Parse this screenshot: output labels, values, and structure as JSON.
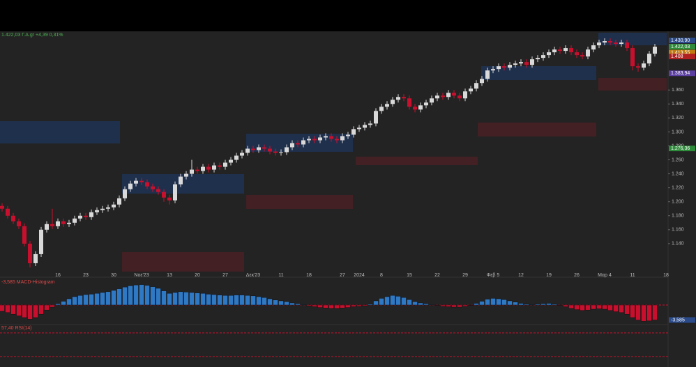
{
  "chart_data": [
    {
      "type": "candlestick",
      "title": "1.422,03 Γ.Δ.gr +4,39 0,31%",
      "categories": [
        null,
        null,
        null,
        null,
        null,
        null,
        null,
        null,
        null,
        null,
        "16",
        null,
        null,
        null,
        null,
        "23",
        null,
        null,
        null,
        null,
        "30",
        null,
        null,
        null,
        null,
        "Νοε'23",
        null,
        null,
        null,
        null,
        "13",
        null,
        null,
        null,
        null,
        "20",
        null,
        null,
        null,
        null,
        "27",
        null,
        null,
        null,
        null,
        "Δεκ'23",
        null,
        null,
        null,
        null,
        "11",
        null,
        null,
        null,
        null,
        "18",
        null,
        null,
        null,
        null,
        null,
        "27",
        null,
        null,
        "2024",
        null,
        null,
        null,
        "8",
        null,
        null,
        null,
        null,
        "15",
        null,
        null,
        null,
        null,
        "22",
        null,
        null,
        null,
        null,
        "29",
        null,
        null,
        null,
        null,
        "Φεβ 5",
        null,
        null,
        null,
        null,
        "12",
        null,
        null,
        null,
        null,
        "19",
        null,
        null,
        null,
        null,
        "26",
        null,
        null,
        null,
        null,
        "Μαρ 4",
        null,
        null,
        null,
        null,
        "11",
        null,
        null,
        null,
        null,
        null,
        "18"
      ],
      "opens": [
        1194,
        1190,
        1180,
        1172,
        1165,
        1140,
        1112,
        1125,
        1160,
        1168,
        1165,
        1172,
        1168,
        1170,
        1176,
        1180,
        1178,
        1185,
        1188,
        1190,
        1192,
        1196,
        1205,
        1218,
        1226,
        1230,
        1228,
        1222,
        1218,
        1214,
        1206,
        1202,
        1225,
        1236,
        1240,
        1246,
        1244,
        1250,
        1246,
        1252,
        1250,
        1256,
        1260,
        1266,
        1270,
        1276,
        1274,
        1278,
        1276,
        1272,
        1270,
        1271,
        1278,
        1284,
        1282,
        1288,
        1290,
        1288,
        1292,
        1294,
        1290,
        1288,
        1294,
        1296,
        1304,
        1306,
        1310,
        1312,
        1330,
        1336,
        1340,
        1346,
        1350,
        1348,
        1336,
        1332,
        1338,
        1342,
        1348,
        1352,
        1350,
        1356,
        1352,
        1348,
        1358,
        1362,
        1370,
        1376,
        1388,
        1390,
        1394,
        1392,
        1396,
        1398,
        1400,
        1396,
        1404,
        1406,
        1410,
        1414,
        1418,
        1416,
        1420,
        1414,
        1410,
        1408,
        1418,
        1424,
        1428,
        1430,
        1428,
        1426,
        1428,
        1420,
        1394,
        1392,
        1398,
        1412,
        null,
        null
      ],
      "highs": [
        1198,
        1194,
        1184,
        1176,
        1169,
        1144,
        1129,
        1164,
        1172,
        1190,
        1176,
        1176,
        1174,
        1180,
        1184,
        1184,
        1189,
        1192,
        1194,
        1196,
        1200,
        1209,
        1222,
        1230,
        1234,
        1234,
        1232,
        1226,
        1222,
        1218,
        1210,
        1229,
        1240,
        1244,
        1260,
        1250,
        1254,
        1254,
        1256,
        1256,
        1260,
        1264,
        1270,
        1274,
        1280,
        1280,
        1282,
        1282,
        1280,
        1276,
        1275,
        1282,
        1288,
        1288,
        1292,
        1294,
        1294,
        1296,
        1298,
        1298,
        1294,
        1298,
        1300,
        1308,
        1310,
        1314,
        1316,
        1334,
        1340,
        1344,
        1350,
        1354,
        1354,
        1352,
        1340,
        1342,
        1346,
        1352,
        1356,
        1356,
        1360,
        1360,
        1356,
        1362,
        1366,
        1374,
        1380,
        1392,
        1394,
        1398,
        1398,
        1400,
        1402,
        1404,
        1404,
        1408,
        1410,
        1414,
        1418,
        1422,
        1422,
        1424,
        1424,
        1418,
        1414,
        1422,
        1428,
        1432,
        1434,
        1434,
        1432,
        1432,
        1432,
        1424,
        1398,
        1402,
        1416,
        1426,
        null,
        null
      ],
      "lows": [
        1186,
        1176,
        1168,
        1161,
        1136,
        1106,
        1108,
        1121,
        1156,
        1161,
        1161,
        1164,
        1164,
        1166,
        1172,
        1174,
        1174,
        1181,
        1184,
        1186,
        1188,
        1192,
        1201,
        1214,
        1222,
        1224,
        1218,
        1214,
        1210,
        1200,
        1196,
        1198,
        1221,
        1232,
        1236,
        1240,
        1240,
        1242,
        1242,
        1246,
        1246,
        1252,
        1256,
        1262,
        1266,
        1270,
        1270,
        1272,
        1268,
        1266,
        1266,
        1267,
        1274,
        1278,
        1278,
        1284,
        1284,
        1284,
        1288,
        1286,
        1284,
        1284,
        1290,
        1292,
        1300,
        1302,
        1306,
        1308,
        1326,
        1332,
        1336,
        1342,
        1344,
        1332,
        1328,
        1328,
        1334,
        1338,
        1344,
        1346,
        1346,
        1348,
        1344,
        1344,
        1354,
        1358,
        1366,
        1372,
        1384,
        1386,
        1388,
        1388,
        1392,
        1394,
        1392,
        1392,
        1400,
        1402,
        1406,
        1410,
        1412,
        1412,
        1410,
        1406,
        1404,
        1404,
        1414,
        1420,
        1424,
        1424,
        1422,
        1422,
        1416,
        1388,
        1386,
        1388,
        1394,
        1408,
        null,
        null
      ],
      "closes": [
        1190,
        1180,
        1172,
        1165,
        1140,
        1112,
        1125,
        1160,
        1168,
        1165,
        1172,
        1168,
        1170,
        1176,
        1180,
        1178,
        1185,
        1188,
        1190,
        1192,
        1196,
        1205,
        1218,
        1226,
        1230,
        1228,
        1222,
        1218,
        1214,
        1206,
        1202,
        1225,
        1236,
        1240,
        1246,
        1244,
        1250,
        1246,
        1252,
        1250,
        1256,
        1260,
        1266,
        1270,
        1276,
        1274,
        1278,
        1276,
        1272,
        1270,
        1271,
        1278,
        1284,
        1282,
        1288,
        1290,
        1288,
        1292,
        1294,
        1290,
        1288,
        1294,
        1296,
        1304,
        1306,
        1310,
        1312,
        1330,
        1336,
        1340,
        1346,
        1350,
        1348,
        1336,
        1332,
        1338,
        1342,
        1348,
        1352,
        1350,
        1356,
        1352,
        1348,
        1358,
        1362,
        1370,
        1376,
        1388,
        1390,
        1394,
        1392,
        1396,
        1398,
        1400,
        1396,
        1404,
        1406,
        1410,
        1414,
        1418,
        1416,
        1420,
        1414,
        1410,
        1408,
        1418,
        1424,
        1428,
        1430,
        1428,
        1426,
        1428,
        1420,
        1394,
        1392,
        1398,
        1412,
        1422,
        null,
        null
      ],
      "up_color": "#d9d9d9",
      "down_color": "#c8102e",
      "ylim": [
        1100,
        1442
      ],
      "yticks": [
        {
          "value": 1140,
          "label": "1.140"
        },
        {
          "value": 1160,
          "label": "1.160"
        },
        {
          "value": 1180,
          "label": "1.180"
        },
        {
          "value": 1200,
          "label": "1.200"
        },
        {
          "value": 1220,
          "label": "1.220"
        },
        {
          "value": 1240,
          "label": "1.240"
        },
        {
          "value": 1260,
          "label": "1.260"
        },
        {
          "value": 1280,
          "label": "1.280"
        },
        {
          "value": 1300,
          "label": "1.300"
        },
        {
          "value": 1320,
          "label": "1.320"
        },
        {
          "value": 1340,
          "label": "1.340"
        },
        {
          "value": 1360,
          "label": "1.360"
        }
      ],
      "price_markers": [
        {
          "value": 1430.9,
          "label": "1.430,90",
          "color": "#2a4a8a"
        },
        {
          "value": 1422.03,
          "label": "1.422,03",
          "color": "#2e8b3a"
        },
        {
          "value": 1413.55,
          "label": "1.413,55",
          "color": "#c07a10"
        },
        {
          "value": 1408,
          "label": "1.408",
          "color": "#b02020"
        },
        {
          "value": 1383.94,
          "label": "1.383,94",
          "color": "#5a3fa0"
        },
        {
          "value": 1276.36,
          "label": "1.276,36",
          "color": "#2e8b3a"
        }
      ]
    },
    {
      "type": "histogram",
      "title": "-3,585 MACD-Histogram",
      "values": [
        -1.5,
        -1.8,
        -2.2,
        -2.6,
        -3.0,
        -3.4,
        -3.0,
        -2.2,
        -1.2,
        -0.5,
        0.3,
        0.9,
        1.5,
        2.0,
        2.3,
        2.5,
        2.6,
        2.8,
        3.0,
        3.2,
        3.5,
        3.9,
        4.3,
        4.6,
        4.8,
        4.9,
        4.7,
        4.4,
        4.0,
        3.4,
        2.8,
        3.0,
        3.2,
        3.1,
        3.0,
        2.9,
        2.8,
        2.6,
        2.5,
        2.4,
        2.3,
        2.3,
        2.4,
        2.4,
        2.3,
        2.2,
        2.0,
        1.8,
        1.5,
        1.2,
        1.0,
        0.8,
        0.5,
        0.3,
        0.1,
        -0.2,
        -0.4,
        -0.6,
        -0.7,
        -0.8,
        -0.8,
        -0.7,
        -0.6,
        -0.4,
        -0.3,
        -0.2,
        0.2,
        1.0,
        1.6,
        2.0,
        2.3,
        2.1,
        1.8,
        1.3,
        0.8,
        0.5,
        0.3,
        0.1,
        -0.1,
        -0.3,
        -0.4,
        -0.5,
        -0.5,
        -0.3,
        -0.1,
        0.4,
        0.9,
        1.4,
        1.6,
        1.5,
        1.3,
        1.0,
        0.7,
        0.4,
        0.2,
        0.1,
        0.2,
        0.3,
        0.4,
        0.2,
        -0.1,
        -0.4,
        -0.8,
        -1.1,
        -1.3,
        -1.2,
        -1.0,
        -0.9,
        -1.0,
        -1.3,
        -1.6,
        -1.8,
        -2.2,
        -3.0,
        -3.6,
        -3.9,
        -3.8,
        -3.585,
        null,
        null
      ],
      "up_color": "#2f78c4",
      "down_color": "#c8102e",
      "ylim": [
        -4.5,
        6
      ],
      "price_markers": [
        {
          "value": -3.585,
          "label": "-3,585",
          "color": "#2a4a8a"
        }
      ]
    },
    {
      "type": "rsi",
      "title": "57,40 RSI(14)"
    }
  ]
}
